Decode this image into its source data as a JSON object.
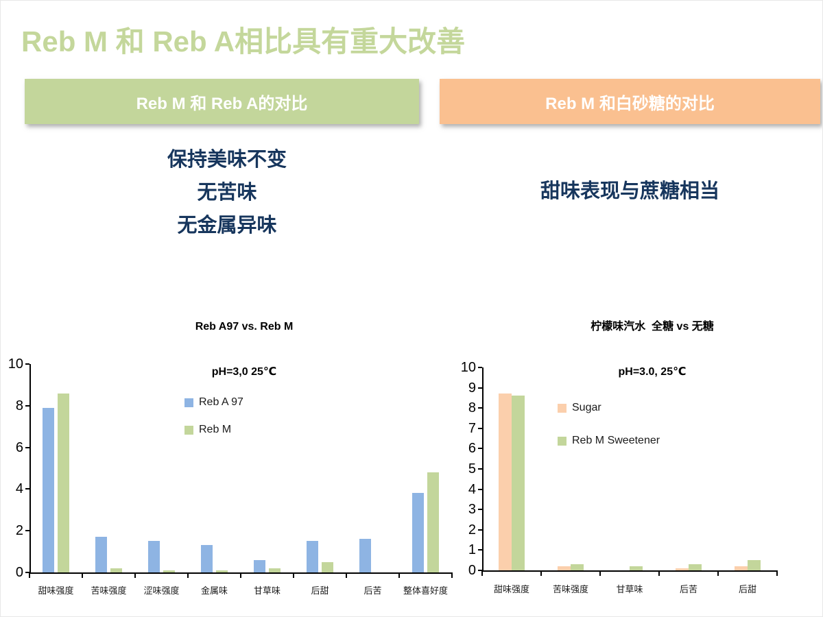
{
  "slide": {
    "title": "Reb M 和 Reb A相比具有重大改善",
    "panels": {
      "left": {
        "header": "Reb M 和 Reb A的对比",
        "points": [
          "保持美味不变",
          "无苦味",
          "无金属异味"
        ]
      },
      "right": {
        "header": "Reb M 和白砂糖的对比",
        "points": [
          "甜味表现与蔗糖相当"
        ]
      }
    },
    "colors": {
      "title_green": "#C4D79B",
      "header_green": "#C3D69B",
      "header_orange": "#FAC090",
      "navy_text": "#17365D",
      "bar_blue": "#8EB4E3",
      "bar_green": "#C3D69B",
      "bar_peach": "#FBCFAC"
    }
  },
  "chart_data": [
    {
      "type": "bar",
      "title": "Reb A97 vs. Reb M",
      "subtitle": "pH=3,0 25℃",
      "categories": [
        "甜味强度",
        "苦味强度",
        "涩味强度",
        "金属味",
        "甘草味",
        "后甜",
        "后苦",
        "整体喜好度"
      ],
      "series": [
        {
          "name": "Reb A 97",
          "color": "#8EB4E3",
          "values": [
            7.9,
            1.7,
            1.5,
            1.3,
            0.6,
            1.5,
            1.6,
            3.8
          ]
        },
        {
          "name": "Reb M",
          "color": "#C3D69B",
          "values": [
            8.6,
            0.2,
            0.1,
            0.1,
            0.2,
            0.5,
            0,
            4.8
          ]
        }
      ],
      "ylim": [
        0,
        10
      ],
      "ytick": 2,
      "grid": false,
      "legend_position": "inside-upper-middle"
    },
    {
      "type": "bar",
      "title": "柠檬味汽水  全糖 vs 无糖",
      "subtitle": "pH=3.0, 25℃",
      "categories": [
        "甜味强度",
        "苦味强度",
        "甘草味",
        "后苦",
        "后甜"
      ],
      "series": [
        {
          "name": "Sugar",
          "color": "#FBCFAC",
          "values": [
            8.7,
            0.2,
            0,
            0.1,
            0.2
          ]
        },
        {
          "name": "Reb M Sweetener",
          "color": "#C3D69B",
          "values": [
            8.6,
            0.3,
            0.2,
            0.3,
            0.5
          ]
        }
      ],
      "ylim": [
        0,
        10
      ],
      "ytick": 1,
      "grid": false,
      "legend_position": "inside-upper-middle"
    }
  ]
}
